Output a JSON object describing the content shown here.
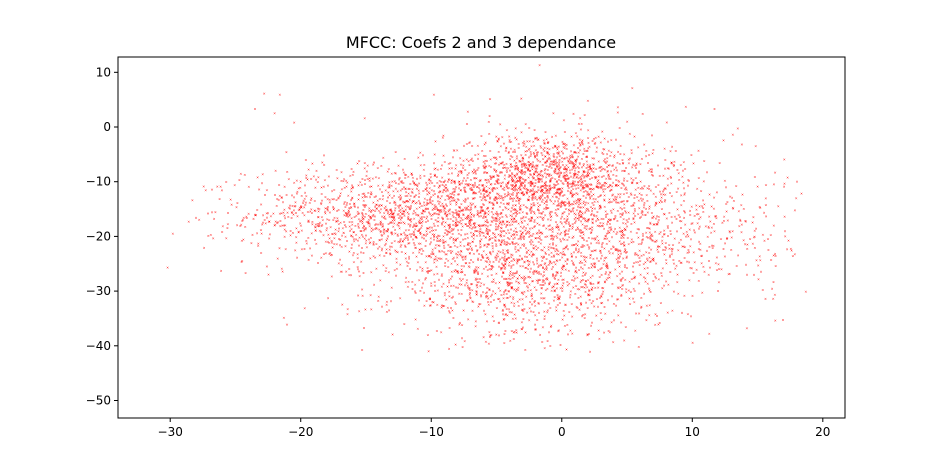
{
  "chart_data": {
    "type": "scatter",
    "title": "MFCC: Coefs 2 and 3 dependance",
    "xlabel": "",
    "ylabel": "",
    "xlim": [
      -34.0,
      21.7
    ],
    "ylim": [
      -53.2,
      12.8
    ],
    "xticks": [
      -30,
      -20,
      -10,
      0,
      10,
      20
    ],
    "yticks": [
      10,
      0,
      -10,
      -20,
      -30,
      -40,
      -50
    ],
    "grid": false,
    "legend": "none",
    "marker": "x",
    "color": "#ff0000",
    "point_count": 5000,
    "density_clusters": [
      {
        "center": [
          -12,
          -16
        ],
        "spread": [
          6,
          4.5
        ],
        "weight": 0.3
      },
      {
        "center": [
          -1,
          -9
        ],
        "spread": [
          4,
          4
        ],
        "weight": 0.25
      },
      {
        "center": [
          -3,
          -28
        ],
        "spread": [
          5,
          5.5
        ],
        "weight": 0.2
      },
      {
        "center": [
          3,
          -19
        ],
        "spread": [
          7,
          6
        ],
        "weight": 0.25
      }
    ],
    "points": [
      [
        -30.2,
        -25.7
      ],
      [
        -29.8,
        -19.5
      ],
      [
        -28.3,
        -13.4
      ],
      [
        -27.4,
        -22.1
      ],
      [
        -26.8,
        -15.6
      ],
      [
        -26.1,
        -26.3
      ],
      [
        -25.3,
        -14.2
      ],
      [
        -24.7,
        -9.7
      ],
      [
        -23.5,
        3.3
      ],
      [
        -22.8,
        6.1
      ],
      [
        -22.0,
        2.5
      ],
      [
        -21.6,
        5.9
      ],
      [
        -21.1,
        -4.6
      ],
      [
        -20.5,
        0.8
      ],
      [
        -20.3,
        -9.8
      ],
      [
        -19.4,
        -24.3
      ],
      [
        -17.9,
        -31.3
      ],
      [
        -16.4,
        -33.3
      ],
      [
        -15.1,
        1.6
      ],
      [
        -14.2,
        -25.9
      ],
      [
        -13.4,
        -33.8
      ],
      [
        -11.2,
        -35.2
      ],
      [
        -10.2,
        -41.0
      ],
      [
        -9.8,
        5.9
      ],
      [
        -7.2,
        2.8
      ],
      [
        -5.5,
        5.1
      ],
      [
        -4.4,
        -39.5
      ],
      [
        -3.1,
        5.2
      ],
      [
        -1.7,
        11.3
      ],
      [
        -1.5,
        -39.3
      ],
      [
        0.9,
        2.4
      ],
      [
        2.0,
        4.8
      ],
      [
        4.3,
        3.6
      ],
      [
        5.4,
        7.1
      ],
      [
        6.2,
        2.4
      ],
      [
        5.9,
        -40.2
      ],
      [
        7.4,
        -36.1
      ],
      [
        9.5,
        3.7
      ],
      [
        9.9,
        -34.6
      ],
      [
        11.3,
        -37.8
      ],
      [
        11.7,
        3.3
      ],
      [
        12.1,
        -6.6
      ],
      [
        13.1,
        -1.4
      ],
      [
        13.8,
        -3.2
      ],
      [
        14.1,
        -17.3
      ],
      [
        14.8,
        -22.1
      ],
      [
        15.4,
        -29.8
      ],
      [
        15.8,
        -20.5
      ],
      [
        16.2,
        -31.4
      ],
      [
        18.7,
        -30.1
      ]
    ]
  }
}
